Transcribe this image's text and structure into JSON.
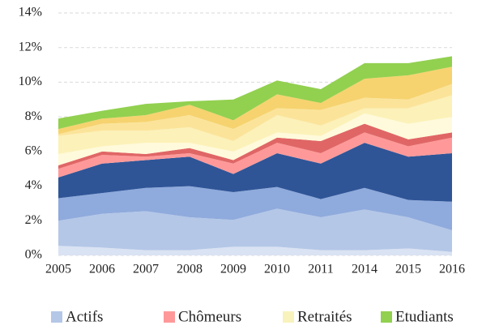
{
  "chart_data": {
    "type": "stacked-area",
    "categories": [
      "2005",
      "2006",
      "2007",
      "2008",
      "2009",
      "2010",
      "2011",
      "2014",
      "2015",
      "2016"
    ],
    "ylim": [
      0,
      14
    ],
    "yticks": [
      {
        "value": 0,
        "label": "0%"
      },
      {
        "value": 2,
        "label": "2%"
      },
      {
        "value": 4,
        "label": "4%"
      },
      {
        "value": 6,
        "label": "6%"
      },
      {
        "value": 8,
        "label": "8%"
      },
      {
        "value": 10,
        "label": "10%"
      },
      {
        "value": 12,
        "label": "12%"
      },
      {
        "value": 14,
        "label": "14%"
      }
    ],
    "grid": true,
    "legend": "bottom",
    "series": [
      {
        "name": "Actifs",
        "color": "#b4c7e7",
        "layers": [
          {
            "color": "#dae3f3",
            "values": [
              0.55,
              0.45,
              0.3,
              0.3,
              0.5,
              0.5,
              0.3,
              0.3,
              0.4,
              0.2
            ]
          },
          {
            "color": "#b4c7e7",
            "values": [
              1.45,
              1.95,
              2.25,
              1.9,
              1.55,
              2.2,
              1.9,
              2.35,
              1.8,
              1.25
            ]
          },
          {
            "color": "#8faadc",
            "values": [
              1.3,
              1.2,
              1.35,
              1.8,
              1.6,
              1.25,
              1.05,
              1.25,
              1.0,
              1.65
            ]
          },
          {
            "color": "#2f5597",
            "values": [
              1.2,
              1.7,
              1.6,
              1.7,
              1.05,
              1.95,
              2.05,
              2.6,
              2.5,
              2.8
            ]
          }
        ]
      },
      {
        "name": "Chômeurs",
        "color": "#ff9999",
        "layers": [
          {
            "color": "#ff9999",
            "values": [
              0.5,
              0.5,
              0.2,
              0.2,
              0.6,
              0.6,
              0.6,
              0.6,
              0.6,
              0.9
            ]
          },
          {
            "color": "#e06666",
            "values": [
              0.2,
              0.2,
              0.15,
              0.3,
              0.2,
              0.3,
              0.7,
              0.5,
              0.4,
              0.3
            ]
          }
        ]
      },
      {
        "name": "Retraités",
        "color": "#f8f3bd",
        "layers": [
          {
            "color": "#fffadb",
            "values": [
              0.65,
              0.3,
              0.65,
              0.3,
              0.5,
              0.3,
              0.3,
              0.6,
              0.9,
              0.9
            ]
          },
          {
            "color": "#fcf1b8",
            "values": [
              1.05,
              0.9,
              0.7,
              0.9,
              0.6,
              1.0,
              0.6,
              0.3,
              0.9,
              1.25
            ]
          },
          {
            "color": "#fbe49a",
            "values": [
              0.1,
              0.4,
              0.5,
              0.7,
              0.7,
              0.4,
              0.9,
              0.6,
              0.5,
              0.65
            ]
          },
          {
            "color": "#f6d36f",
            "values": [
              0.3,
              0.3,
              0.4,
              0.6,
              0.5,
              0.8,
              0.4,
              1.1,
              1.4,
              1.0
            ]
          }
        ]
      },
      {
        "name": "Etudiants",
        "color": "#92d050",
        "layers": [
          {
            "color": "#92d050",
            "values": [
              0.6,
              0.45,
              0.65,
              0.2,
              1.2,
              0.8,
              0.8,
              0.9,
              0.7,
              0.6
            ]
          }
        ]
      }
    ]
  }
}
